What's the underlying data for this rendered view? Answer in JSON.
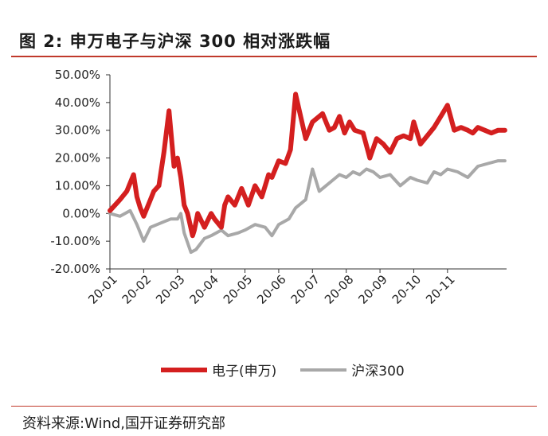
{
  "figure": {
    "title": "图 2:  申万电子与沪深 300 相对涨跌幅",
    "source": "资料来源:Wind,国开证券研究部"
  },
  "colors": {
    "series_red": "#d41f1f",
    "series_gray": "#a8a8a8",
    "accent_rule": "#c0392b",
    "axis": "#333333"
  },
  "chart_data": {
    "type": "line",
    "title": "申万电子与沪深 300 相对涨跌幅",
    "xlabel": "",
    "ylabel": "",
    "ylim": [
      -20,
      50
    ],
    "y_ticks": [
      "-20.00%",
      "-10.00%",
      "0.00%",
      "10.00%",
      "20.00%",
      "30.00%",
      "40.00%",
      "50.00%"
    ],
    "x_tick_labels": [
      "20-01",
      "20-02",
      "20-03",
      "20-04",
      "20-05",
      "20-06",
      "20-07",
      "20-08",
      "20-09",
      "20-10",
      "20-11"
    ],
    "x_range_months": [
      0,
      11.75
    ],
    "grid": false,
    "legend_position": "bottom",
    "series": [
      {
        "name": "电子(申万)",
        "color": "#d41f1f",
        "x": [
          0,
          0.3,
          0.5,
          0.7,
          0.8,
          0.9,
          1.0,
          1.2,
          1.3,
          1.45,
          1.6,
          1.75,
          1.9,
          2.0,
          2.1,
          2.2,
          2.3,
          2.45,
          2.5,
          2.6,
          2.8,
          3.0,
          3.1,
          3.3,
          3.4,
          3.5,
          3.7,
          3.9,
          4.1,
          4.3,
          4.5,
          4.7,
          4.8,
          5.0,
          5.2,
          5.35,
          5.5,
          5.8,
          6.0,
          6.3,
          6.5,
          6.65,
          6.8,
          6.95,
          7.1,
          7.25,
          7.5,
          7.7,
          7.9,
          8.1,
          8.3,
          8.5,
          8.7,
          8.9,
          9.0,
          9.2,
          9.4,
          9.6,
          9.8,
          10.0,
          10.2,
          10.4,
          10.6,
          10.75,
          10.9,
          11.1,
          11.3,
          11.5,
          11.7
        ],
        "values": [
          1,
          5,
          8,
          14,
          6,
          2,
          -1,
          5,
          8,
          10,
          22,
          37,
          17,
          20,
          13,
          3,
          0,
          -8,
          -6,
          0,
          -5,
          0,
          -2,
          -5,
          3,
          6,
          3,
          9,
          3,
          10,
          6,
          14,
          13,
          19,
          18,
          23,
          43,
          27,
          33,
          36,
          30,
          31,
          35,
          29,
          33,
          30,
          29,
          20,
          27,
          25,
          22,
          27,
          28,
          27,
          33,
          25,
          28,
          31,
          35,
          39,
          30,
          31,
          30,
          29,
          31,
          30,
          29,
          30,
          30
        ]
      },
      {
        "name": "沪深300",
        "color": "#a8a8a8",
        "x": [
          0,
          0.3,
          0.6,
          0.8,
          1.0,
          1.2,
          1.4,
          1.6,
          1.8,
          2.0,
          2.1,
          2.2,
          2.4,
          2.55,
          2.8,
          3.0,
          3.3,
          3.5,
          3.8,
          4.0,
          4.3,
          4.6,
          4.8,
          5.0,
          5.3,
          5.5,
          5.8,
          6.0,
          6.2,
          6.4,
          6.6,
          6.8,
          7.0,
          7.2,
          7.4,
          7.6,
          7.8,
          8.0,
          8.3,
          8.6,
          8.9,
          9.1,
          9.4,
          9.6,
          9.8,
          10.0,
          10.3,
          10.6,
          10.9,
          11.2,
          11.5,
          11.7
        ],
        "values": [
          0,
          -1,
          1,
          -4,
          -10,
          -5,
          -4,
          -3,
          -2,
          -2,
          0,
          -7,
          -14,
          -13,
          -9,
          -8,
          -6,
          -8,
          -7,
          -6,
          -4,
          -5,
          -8,
          -4,
          -2,
          2,
          5,
          16,
          8,
          10,
          12,
          14,
          13,
          15,
          14,
          16,
          15,
          13,
          14,
          10,
          13,
          12,
          11,
          15,
          14,
          16,
          15,
          13,
          17,
          18,
          19,
          19
        ]
      }
    ]
  },
  "legend": [
    {
      "label": "电子(申万)"
    },
    {
      "label": "沪深300"
    }
  ]
}
